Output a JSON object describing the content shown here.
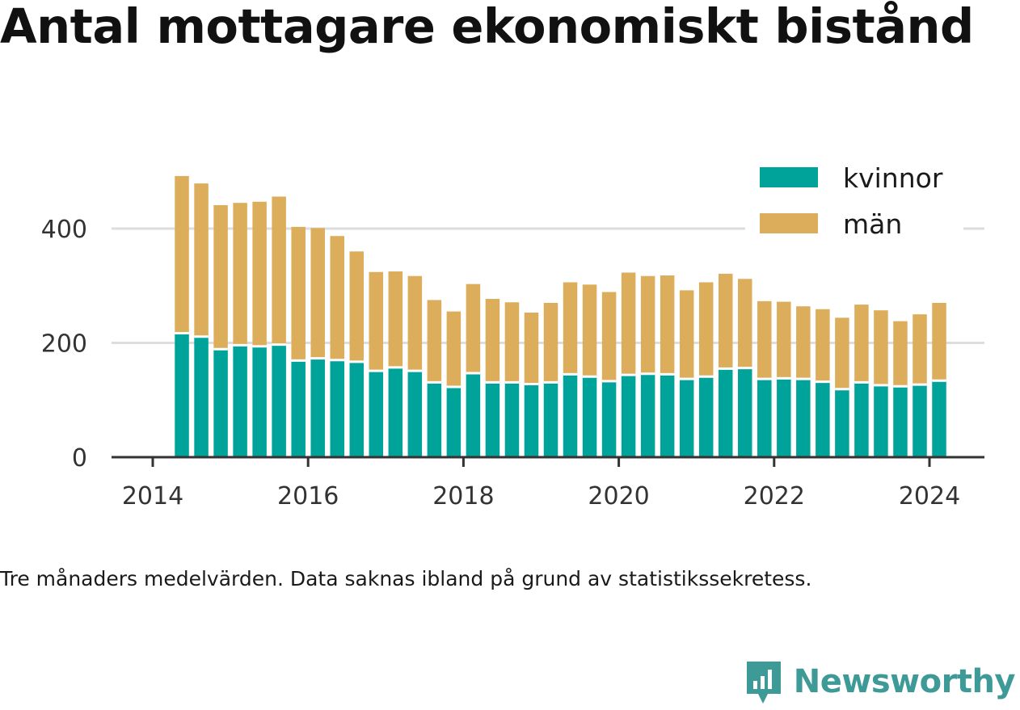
{
  "title": "Antal mottagare ekonomiskt bistånd",
  "footnote": "Tre månaders medelvärden. Data saknas ibland på grund av statistikssekretess.",
  "brand": {
    "name": "Newsworthy",
    "color": "#3d9a96"
  },
  "colors": {
    "kvinnor": "#00a39a",
    "man": "#dcae5c",
    "grid": "#dddddd",
    "axis": "#333333"
  },
  "chart_data": {
    "type": "bar",
    "stacked": true,
    "x": [
      "2014-05",
      "2014-08",
      "2014-11",
      "2015-02",
      "2015-05",
      "2015-08",
      "2015-11",
      "2016-02",
      "2016-05",
      "2016-08",
      "2016-11",
      "2017-02",
      "2017-05",
      "2017-08",
      "2017-11",
      "2018-02",
      "2018-05",
      "2018-08",
      "2018-11",
      "2019-02",
      "2019-05",
      "2019-08",
      "2019-11",
      "2020-02",
      "2020-05",
      "2020-08",
      "2020-11",
      "2021-02",
      "2021-05",
      "2021-08",
      "2021-11",
      "2022-02",
      "2022-05",
      "2022-08",
      "2022-11",
      "2023-02",
      "2023-05",
      "2023-08",
      "2023-11",
      "2024-02"
    ],
    "series": [
      {
        "name": "kvinnor",
        "values": [
          217,
          211,
          189,
          196,
          194,
          197,
          169,
          173,
          170,
          167,
          151,
          157,
          151,
          131,
          123,
          147,
          131,
          131,
          128,
          131,
          145,
          141,
          133,
          144,
          146,
          145,
          137,
          141,
          155,
          156,
          137,
          138,
          137,
          132,
          119,
          131,
          126,
          124,
          127,
          134
        ]
      },
      {
        "name": "män",
        "values": [
          275,
          268,
          252,
          249,
          253,
          259,
          234,
          228,
          217,
          193,
          173,
          168,
          166,
          144,
          132,
          156,
          146,
          140,
          125,
          139,
          161,
          161,
          156,
          179,
          171,
          173,
          155,
          165,
          166,
          156,
          136,
          134,
          127,
          127,
          125,
          136,
          131,
          114,
          123,
          136
        ]
      }
    ],
    "legend": [
      "kvinnor",
      "män"
    ],
    "legend_position": "top-right",
    "x_ticks": [
      "2014",
      "2016",
      "2018",
      "2020",
      "2022",
      "2024"
    ],
    "y_ticks": [
      "0",
      "200",
      "400"
    ],
    "ylim": [
      0,
      520
    ],
    "xlim": [
      "2014",
      "2024-09"
    ],
    "grid": true
  }
}
